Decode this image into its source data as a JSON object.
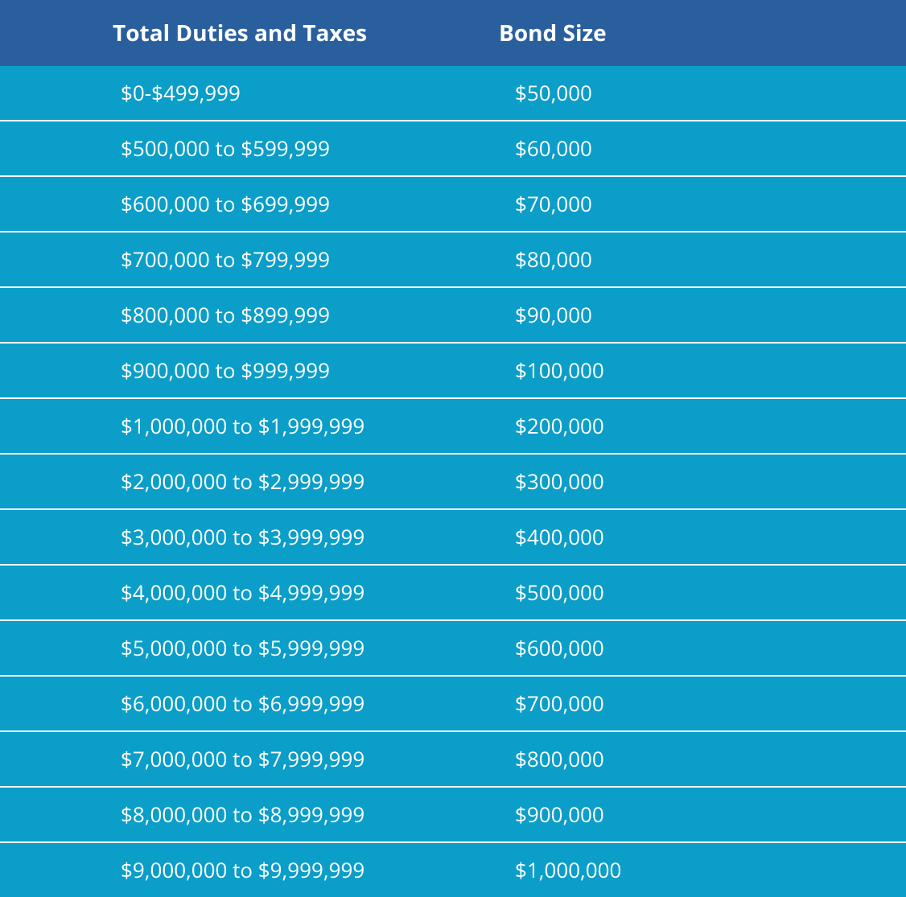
{
  "table": {
    "header_bg": "#2a5f9e",
    "row_bg": "#0a9ec9",
    "divider_color": "#ffffff",
    "text_color": "#ffffff",
    "header_fontsize": 28,
    "cell_fontsize": 26,
    "header_row_height": 82,
    "body_row_height": 67,
    "columns": [
      {
        "key": "duties",
        "label": "Total Duties and Taxes"
      },
      {
        "key": "bond",
        "label": "Bond Size"
      }
    ],
    "rows": [
      {
        "duties": "$0-$499,999",
        "bond": "$50,000"
      },
      {
        "duties": "$500,000 to $599,999",
        "bond": "$60,000"
      },
      {
        "duties": "$600,000 to $699,999",
        "bond": "$70,000"
      },
      {
        "duties": "$700,000 to $799,999",
        "bond": "$80,000"
      },
      {
        "duties": "$800,000 to $899,999",
        "bond": "$90,000"
      },
      {
        "duties": "$900,000 to $999,999",
        "bond": "$100,000"
      },
      {
        "duties": "$1,000,000 to $1,999,999",
        "bond": "$200,000"
      },
      {
        "duties": "$2,000,000 to $2,999,999",
        "bond": "$300,000"
      },
      {
        "duties": "$3,000,000 to $3,999,999",
        "bond": "$400,000"
      },
      {
        "duties": "$4,000,000 to $4,999,999",
        "bond": "$500,000"
      },
      {
        "duties": "$5,000,000 to $5,999,999",
        "bond": "$600,000"
      },
      {
        "duties": "$6,000,000 to $6,999,999",
        "bond": "$700,000"
      },
      {
        "duties": "$7,000,000 to $7,999,999",
        "bond": "$800,000"
      },
      {
        "duties": "$8,000,000 to $8,999,999",
        "bond": "$900,000"
      },
      {
        "duties": "$9,000,000 to $9,999,999",
        "bond": "$1,000,000"
      }
    ]
  }
}
